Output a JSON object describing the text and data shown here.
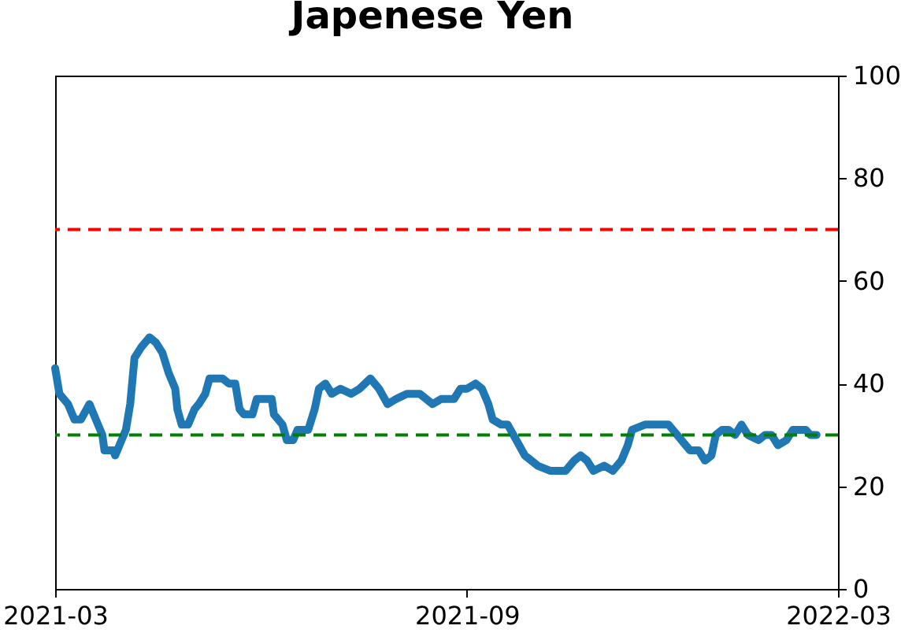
{
  "chart_data": {
    "type": "line",
    "title": "Japenese Yen",
    "x": [
      "2021-03-01",
      "2021-03-03",
      "2021-03-07",
      "2021-03-10",
      "2021-03-13",
      "2021-03-17",
      "2021-03-20",
      "2021-03-23",
      "2021-03-24",
      "2021-03-28",
      "2021-03-29",
      "2021-03-31",
      "2021-04-03",
      "2021-04-05",
      "2021-04-07",
      "2021-04-10",
      "2021-04-14",
      "2021-04-17",
      "2021-04-20",
      "2021-04-23",
      "2021-04-26",
      "2021-04-27",
      "2021-04-29",
      "2021-05-02",
      "2021-05-05",
      "2021-05-07",
      "2021-05-10",
      "2021-05-12",
      "2021-05-15",
      "2021-05-18",
      "2021-05-21",
      "2021-05-24",
      "2021-05-26",
      "2021-05-28",
      "2021-06-01",
      "2021-06-03",
      "2021-06-07",
      "2021-06-10",
      "2021-06-11",
      "2021-06-15",
      "2021-06-17",
      "2021-06-20",
      "2021-06-22",
      "2021-06-27",
      "2021-06-30",
      "2021-07-02",
      "2021-07-05",
      "2021-07-08",
      "2021-07-12",
      "2021-07-17",
      "2021-07-21",
      "2021-07-26",
      "2021-07-30",
      "2021-08-03",
      "2021-08-07",
      "2021-08-12",
      "2021-08-18",
      "2021-08-24",
      "2021-08-28",
      "2021-08-31",
      "2021-09-03",
      "2021-09-06",
      "2021-09-09",
      "2021-09-13",
      "2021-09-16",
      "2021-09-19",
      "2021-09-21",
      "2021-09-25",
      "2021-09-28",
      "2021-10-02",
      "2021-10-06",
      "2021-10-09",
      "2021-10-12",
      "2021-10-18",
      "2021-10-25",
      "2021-10-29",
      "2021-11-01",
      "2021-11-04",
      "2021-11-07",
      "2021-11-12",
      "2021-11-16",
      "2021-11-20",
      "2021-11-23",
      "2021-11-25",
      "2021-12-01",
      "2021-12-07",
      "2021-12-12",
      "2021-12-14",
      "2021-12-18",
      "2021-12-22",
      "2021-12-26",
      "2021-12-29",
      "2022-01-01",
      "2022-01-03",
      "2022-01-06",
      "2022-01-09",
      "2022-01-12",
      "2022-01-15",
      "2022-01-18",
      "2022-01-23",
      "2022-01-26",
      "2022-01-29",
      "2022-02-01",
      "2022-02-05",
      "2022-02-08",
      "2022-02-14",
      "2022-02-16",
      "2022-02-19"
    ],
    "series": [
      {
        "color": "#1f77b4",
        "values": [
          43,
          38,
          36,
          33,
          33,
          36,
          33,
          30,
          27,
          27,
          26,
          28,
          31,
          36,
          45,
          47,
          49,
          48,
          46,
          42,
          39,
          35,
          32,
          32,
          35,
          36,
          38,
          41,
          41,
          41,
          40,
          40,
          35,
          34,
          34,
          37,
          37,
          37,
          34,
          32,
          29,
          29,
          31,
          31,
          35,
          39,
          40,
          38,
          39,
          38,
          39,
          41,
          39,
          36,
          37,
          38,
          38,
          36,
          37,
          37,
          37,
          39,
          39,
          40,
          39,
          36,
          33,
          32,
          32,
          29,
          26,
          25,
          24,
          23,
          23,
          25,
          26,
          25,
          23,
          24,
          23,
          25,
          28,
          31,
          32,
          32,
          32,
          31,
          29,
          27,
          27,
          25,
          26,
          30,
          31,
          31,
          30,
          32,
          30,
          29,
          30,
          30,
          28,
          29,
          31,
          31,
          30,
          30
        ]
      }
    ],
    "xlim": [
      "2021-03-01",
      "2022-03-01"
    ],
    "xticks": [
      {
        "value": "2021-03-01",
        "label": "2021-03"
      },
      {
        "value": "2021-09-09",
        "label": "2021-09"
      },
      {
        "value": "2022-03-01",
        "label": "2022-03"
      }
    ],
    "ylim": [
      0,
      100
    ],
    "yticks": [
      0,
      20,
      40,
      60,
      80,
      100
    ],
    "ref_lines": [
      {
        "axis": "y",
        "value": 70,
        "color": "#ff0000",
        "line_style": "dashed"
      },
      {
        "axis": "y",
        "value": 30,
        "color": "#008000",
        "line_style": "dashed"
      }
    ],
    "grid": false,
    "legend": false,
    "marker": "none",
    "line_style": "solid"
  }
}
